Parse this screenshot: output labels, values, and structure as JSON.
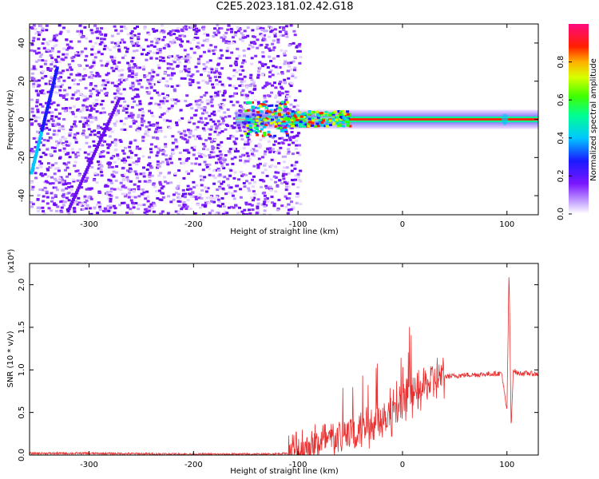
{
  "title": "C2E5.2023.181.02.42.G18",
  "colors": {
    "spectrogram_purple": "#7a16ff",
    "snr_line": "#e83030",
    "axis": "#000000"
  },
  "colorbar": {
    "label": "Normalized spectral amplitude",
    "ticks": [
      "0.0",
      "0.2",
      "0.4",
      "0.6",
      "0.8"
    ],
    "range": [
      0,
      1
    ]
  },
  "chart_data": [
    {
      "type": "heatmap",
      "title": "C2E5.2023.181.02.42.G18",
      "xlabel": "Height of straight line (km)",
      "ylabel": "Frequency (Hz)",
      "xlim": [
        -357,
        130
      ],
      "ylim": [
        -50,
        50
      ],
      "xticks": [
        "-300",
        "-200",
        "-100",
        "0",
        "100"
      ],
      "yticks": [
        "-40",
        "-20",
        "0",
        "20",
        "40"
      ],
      "grid": false,
      "signal_frequency_hz": 0,
      "noise_region_x": [
        -357,
        -105
      ]
    },
    {
      "type": "line",
      "xlabel": "Height of straight line (km)",
      "ylabel": "SNR (10 * v/v)",
      "y_multiplier": "(x10⁴)",
      "xlim": [
        -357,
        130
      ],
      "ylim": [
        0,
        2.25
      ],
      "xticks": [
        "-300",
        "-200",
        "-100",
        "0",
        "100"
      ],
      "yticks": [
        "0.0",
        "0.5",
        "1.0",
        "1.5",
        "2.0"
      ],
      "grid": false,
      "series": [
        {
          "x": [
            -357,
            -300,
            -200,
            -130,
            -110,
            -100,
            -90,
            -80,
            -70,
            -60,
            -50,
            -40,
            -30,
            -20,
            -10,
            0,
            10,
            20,
            30,
            40,
            60,
            80,
            95,
            100,
            102,
            104,
            106,
            110,
            120,
            130
          ],
          "y": [
            0.02,
            0.02,
            0.01,
            0.01,
            0.02,
            0.05,
            0.1,
            0.14,
            0.17,
            0.22,
            0.25,
            0.32,
            0.38,
            0.45,
            0.5,
            0.58,
            0.68,
            0.8,
            0.88,
            0.92,
            0.94,
            0.95,
            0.96,
            0.5,
            2.2,
            0.3,
            1.0,
            0.96,
            0.96,
            0.95
          ]
        }
      ]
    }
  ]
}
